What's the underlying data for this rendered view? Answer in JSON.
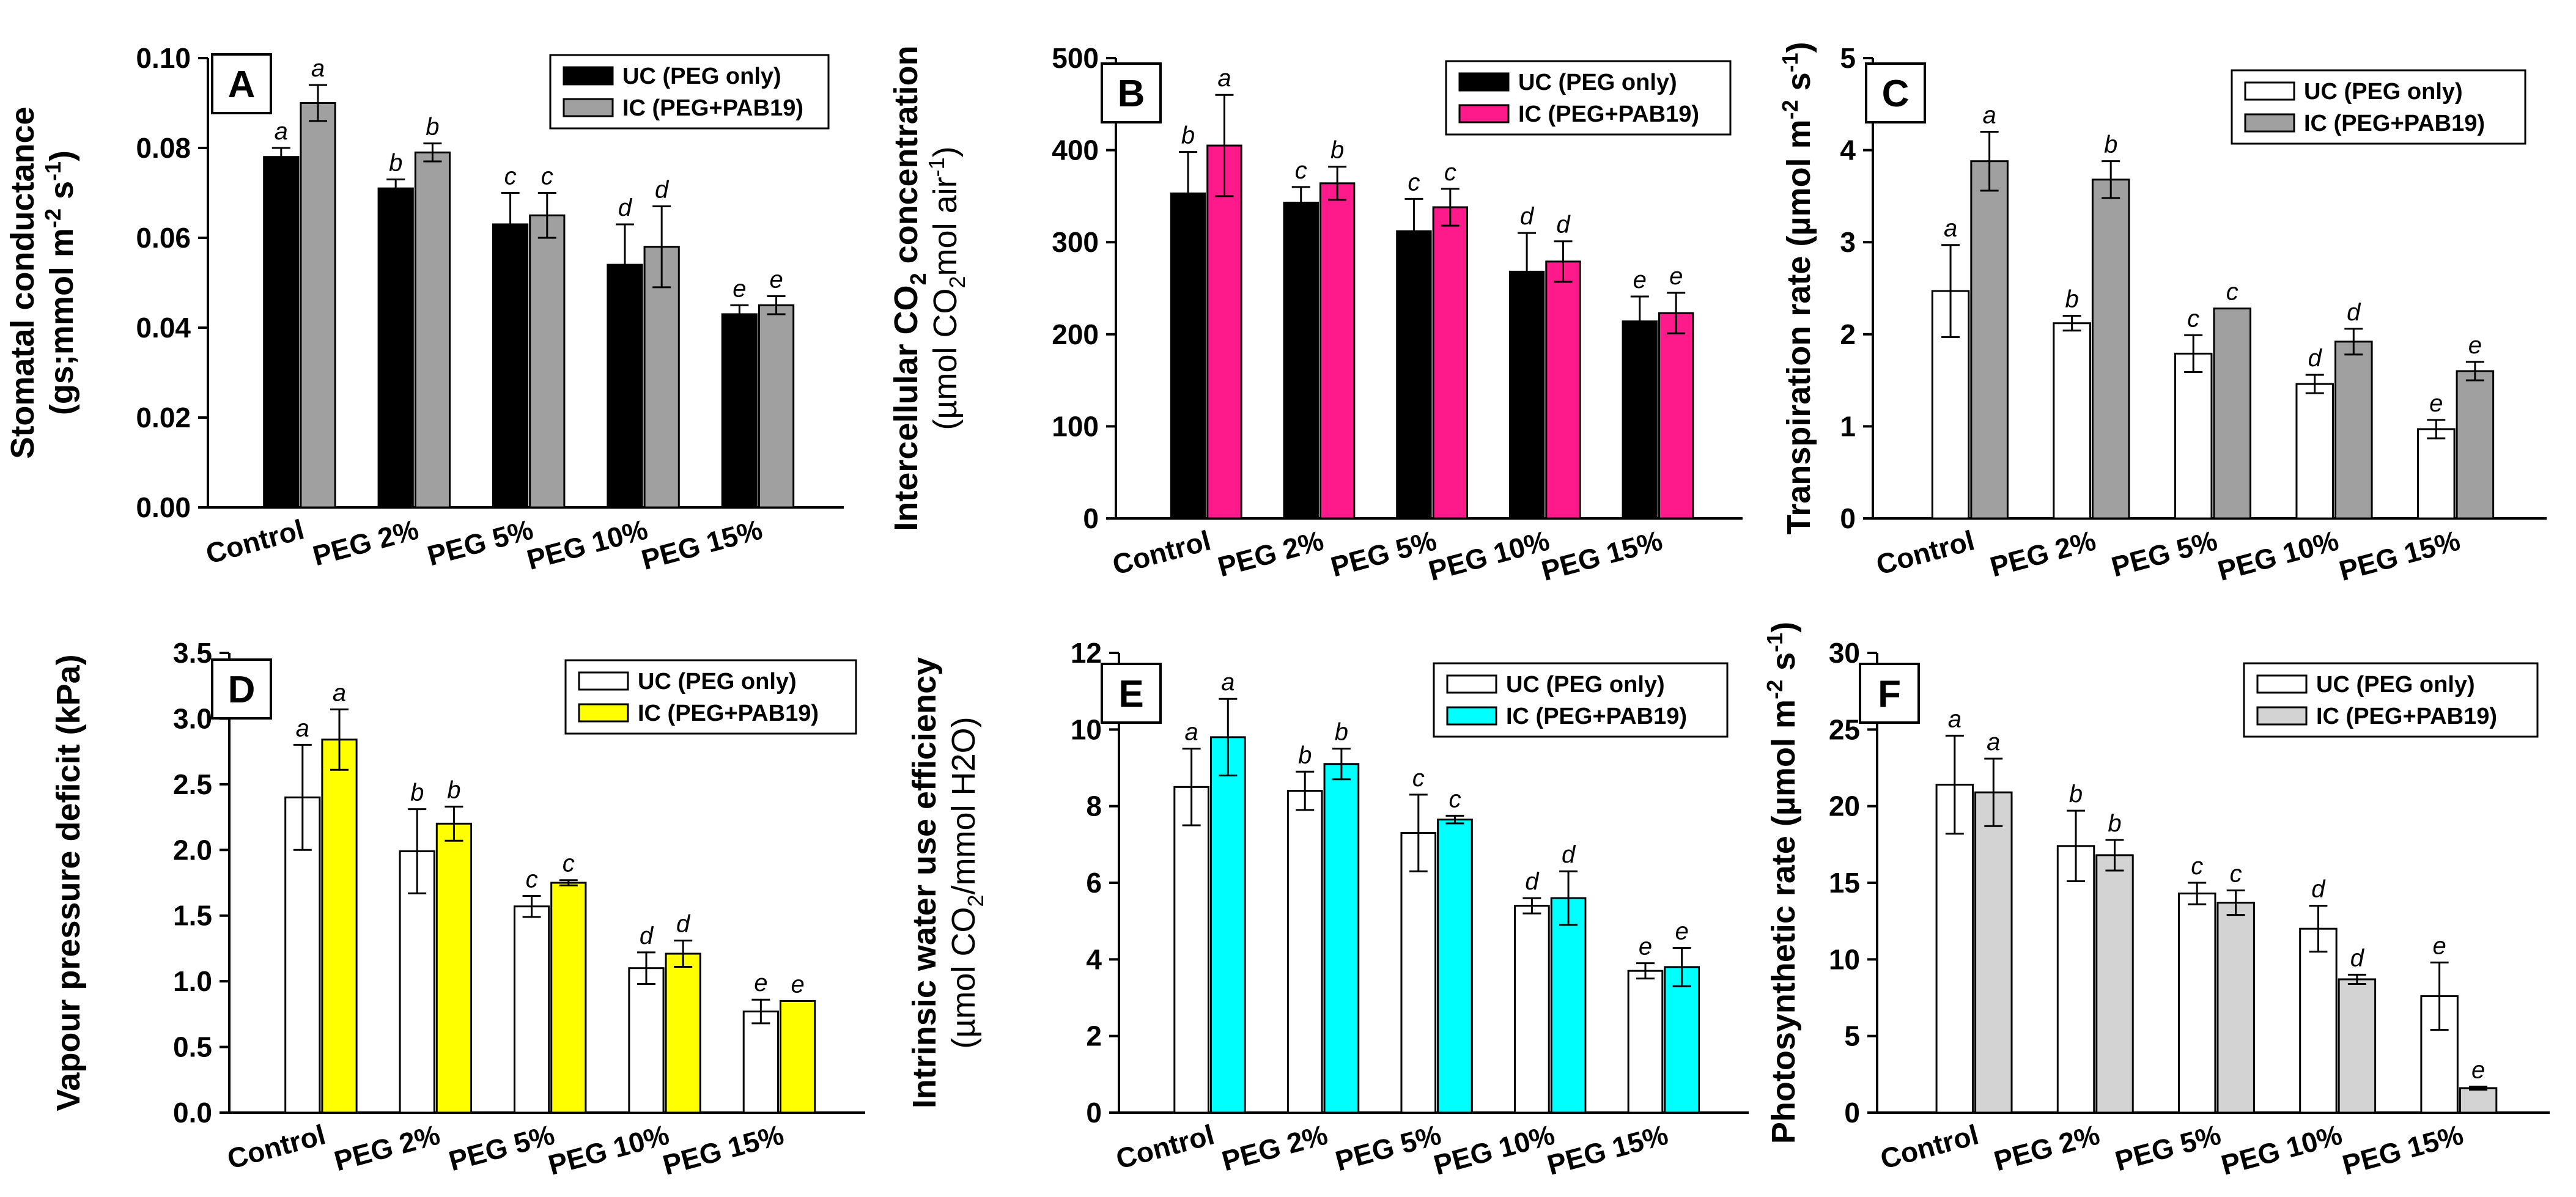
{
  "chart_data": [
    {
      "type": "bar",
      "panel_label": "A",
      "ylabel_lines": [
        "Stomatal conductance",
        "(gs;mmol m",
        "-2",
        " s",
        "-1",
        ")"
      ],
      "categories": [
        "Control",
        "PEG 2%",
        "PEG 5%",
        "PEG 10%",
        "PEG 15%"
      ],
      "ylim": [
        0,
        0.1
      ],
      "yticks": [
        0,
        0.02,
        0.04,
        0.06,
        0.08,
        0.1
      ],
      "ytick_labels": [
        "0.00",
        "0.02",
        "0.04",
        "0.06",
        "0.08",
        "0.10"
      ],
      "legend_position": "top-right",
      "series": [
        {
          "name": "UC (PEG only)",
          "color": "#000000",
          "values": [
            0.078,
            0.071,
            0.063,
            0.054,
            0.043
          ],
          "errors": [
            0.002,
            0.002,
            0.007,
            0.009,
            0.002
          ],
          "letters": [
            "a",
            "b",
            "c",
            "d",
            "e"
          ]
        },
        {
          "name": "IC (PEG+PAB19)",
          "color": "#a0a0a0",
          "values": [
            0.09,
            0.079,
            0.065,
            0.058,
            0.045
          ],
          "errors": [
            0.004,
            0.002,
            0.005,
            0.009,
            0.002
          ],
          "letters": [
            "a",
            "b",
            "c",
            "d",
            "e"
          ]
        }
      ]
    },
    {
      "type": "bar",
      "panel_label": "B",
      "ylabel_lines": [
        "Intercellular CO",
        "2",
        " concentration",
        "(µmol CO",
        "2",
        "mol air",
        "-1",
        ")"
      ],
      "categories": [
        "Control",
        "PEG 2%",
        "PEG 5%",
        "PEG 10%",
        "PEG 15%"
      ],
      "ylim": [
        0,
        500
      ],
      "yticks": [
        0,
        100,
        200,
        300,
        400,
        500
      ],
      "ytick_labels": [
        "0",
        "100",
        "200",
        "300",
        "400",
        "500"
      ],
      "legend_position": "top-right",
      "series": [
        {
          "name": "UC (PEG only)",
          "color": "#000000",
          "values": [
            353,
            343,
            312,
            268,
            214
          ],
          "errors": [
            45,
            17,
            35,
            42,
            27
          ],
          "letters": [
            "b",
            "c",
            "c",
            "d",
            "e"
          ]
        },
        {
          "name": "IC (PEG+PAB19)",
          "color": "#ff1a8c",
          "values": [
            405,
            364,
            338,
            279,
            223
          ],
          "errors": [
            55,
            18,
            20,
            22,
            22
          ],
          "letters": [
            "a",
            "b",
            "c",
            "d",
            "e"
          ]
        }
      ]
    },
    {
      "type": "bar",
      "panel_label": "C",
      "ylabel_lines": [
        "Transpiration rate (µmol m",
        "-2",
        " s",
        "-1",
        ")"
      ],
      "categories": [
        "Control",
        "PEG 2%",
        "PEG 5%",
        "PEG 10%",
        "PEG 15%"
      ],
      "ylim": [
        0,
        5
      ],
      "yticks": [
        0,
        1,
        2,
        3,
        4,
        5
      ],
      "ytick_labels": [
        "0",
        "1",
        "2",
        "3",
        "4",
        "5"
      ],
      "legend_position": "top-right",
      "series": [
        {
          "name": "UC (PEG only)",
          "color": "#ffffff",
          "values": [
            2.47,
            2.12,
            1.79,
            1.46,
            0.97
          ],
          "errors": [
            0.5,
            0.08,
            0.2,
            0.1,
            0.1
          ],
          "letters": [
            "a",
            "b",
            "c",
            "d",
            "e"
          ]
        },
        {
          "name": "IC (PEG+PAB19)",
          "color": "#a0a0a0",
          "values": [
            3.88,
            3.68,
            2.28,
            1.92,
            1.6
          ],
          "errors": [
            0.32,
            0.2,
            0.0,
            0.14,
            0.1
          ],
          "letters": [
            "a",
            "b",
            "c",
            "d",
            "e"
          ]
        }
      ]
    },
    {
      "type": "bar",
      "panel_label": "D",
      "ylabel_lines": [
        "Vapour pressure deficit (kPa)"
      ],
      "categories": [
        "Control",
        "PEG 2%",
        "PEG 5%",
        "PEG 10%",
        "PEG 15%"
      ],
      "ylim": [
        0,
        3.5
      ],
      "yticks": [
        0,
        0.5,
        1.0,
        1.5,
        2.0,
        2.5,
        3.0,
        3.5
      ],
      "ytick_labels": [
        "0.0",
        "0.5",
        "1.0",
        "1.5",
        "2.0",
        "2.5",
        "3.0",
        "3.5"
      ],
      "legend_position": "top-right",
      "series": [
        {
          "name": "UC (PEG only)",
          "color": "#ffffff",
          "values": [
            2.4,
            1.99,
            1.57,
            1.1,
            0.77
          ],
          "errors": [
            0.4,
            0.32,
            0.08,
            0.12,
            0.09
          ],
          "letters": [
            "a",
            "b",
            "c",
            "d",
            "e"
          ]
        },
        {
          "name": "IC (PEG+PAB19)",
          "color": "#ffff00",
          "values": [
            2.84,
            2.2,
            1.75,
            1.21,
            0.85
          ],
          "errors": [
            0.23,
            0.13,
            0.02,
            0.1,
            0.0
          ],
          "letters": [
            "a",
            "b",
            "c",
            "d",
            "e"
          ]
        }
      ]
    },
    {
      "type": "bar",
      "panel_label": "E",
      "ylabel_lines": [
        "Intrinsic water use efficiency",
        "(µmol CO",
        "2",
        "/mmol H2O)"
      ],
      "categories": [
        "Control",
        "PEG 2%",
        "PEG 5%",
        "PEG 10%",
        "PEG 15%"
      ],
      "ylim": [
        0,
        12
      ],
      "yticks": [
        0,
        2,
        4,
        6,
        8,
        10,
        12
      ],
      "ytick_labels": [
        "0",
        "2",
        "4",
        "6",
        "8",
        "10",
        "12"
      ],
      "legend_position": "top-right",
      "series": [
        {
          "name": "UC (PEG only)",
          "color": "#ffffff",
          "values": [
            8.5,
            8.4,
            7.3,
            5.4,
            3.7
          ],
          "errors": [
            1.0,
            0.5,
            1.0,
            0.2,
            0.2
          ],
          "letters": [
            "a",
            "b",
            "c",
            "d",
            "e"
          ]
        },
        {
          "name": "IC (PEG+PAB19)",
          "color": "#00ffff",
          "values": [
            9.8,
            9.1,
            7.65,
            5.6,
            3.8
          ],
          "errors": [
            1.0,
            0.4,
            0.1,
            0.7,
            0.5
          ],
          "letters": [
            "a",
            "b",
            "c",
            "d",
            "e"
          ]
        }
      ]
    },
    {
      "type": "bar",
      "panel_label": "F",
      "ylabel_lines": [
        "Photosynthetic rate (µmol m",
        "-2",
        " s",
        "-1",
        ")"
      ],
      "categories": [
        "Control",
        "PEG 2%",
        "PEG 5%",
        "PEG 10%",
        "PEG 15%"
      ],
      "ylim": [
        0,
        30
      ],
      "yticks": [
        0,
        5,
        10,
        15,
        20,
        25,
        30
      ],
      "ytick_labels": [
        "0",
        "5",
        "10",
        "15",
        "20",
        "25",
        "30"
      ],
      "legend_position": "top-right",
      "series": [
        {
          "name": "UC (PEG only)",
          "color": "#ffffff",
          "values": [
            21.4,
            17.4,
            14.3,
            12.0,
            7.6
          ],
          "errors": [
            3.2,
            2.3,
            0.7,
            1.5,
            2.2
          ],
          "letters": [
            "a",
            "b",
            "c",
            "d",
            "e"
          ]
        },
        {
          "name": "IC (PEG+PAB19)",
          "color": "#d3d3d3",
          "values": [
            20.9,
            16.8,
            13.7,
            8.7,
            1.6
          ],
          "errors": [
            2.2,
            1.0,
            0.8,
            0.3,
            0.1
          ],
          "letters": [
            "a",
            "b",
            "c",
            "d",
            "e"
          ]
        }
      ]
    }
  ]
}
